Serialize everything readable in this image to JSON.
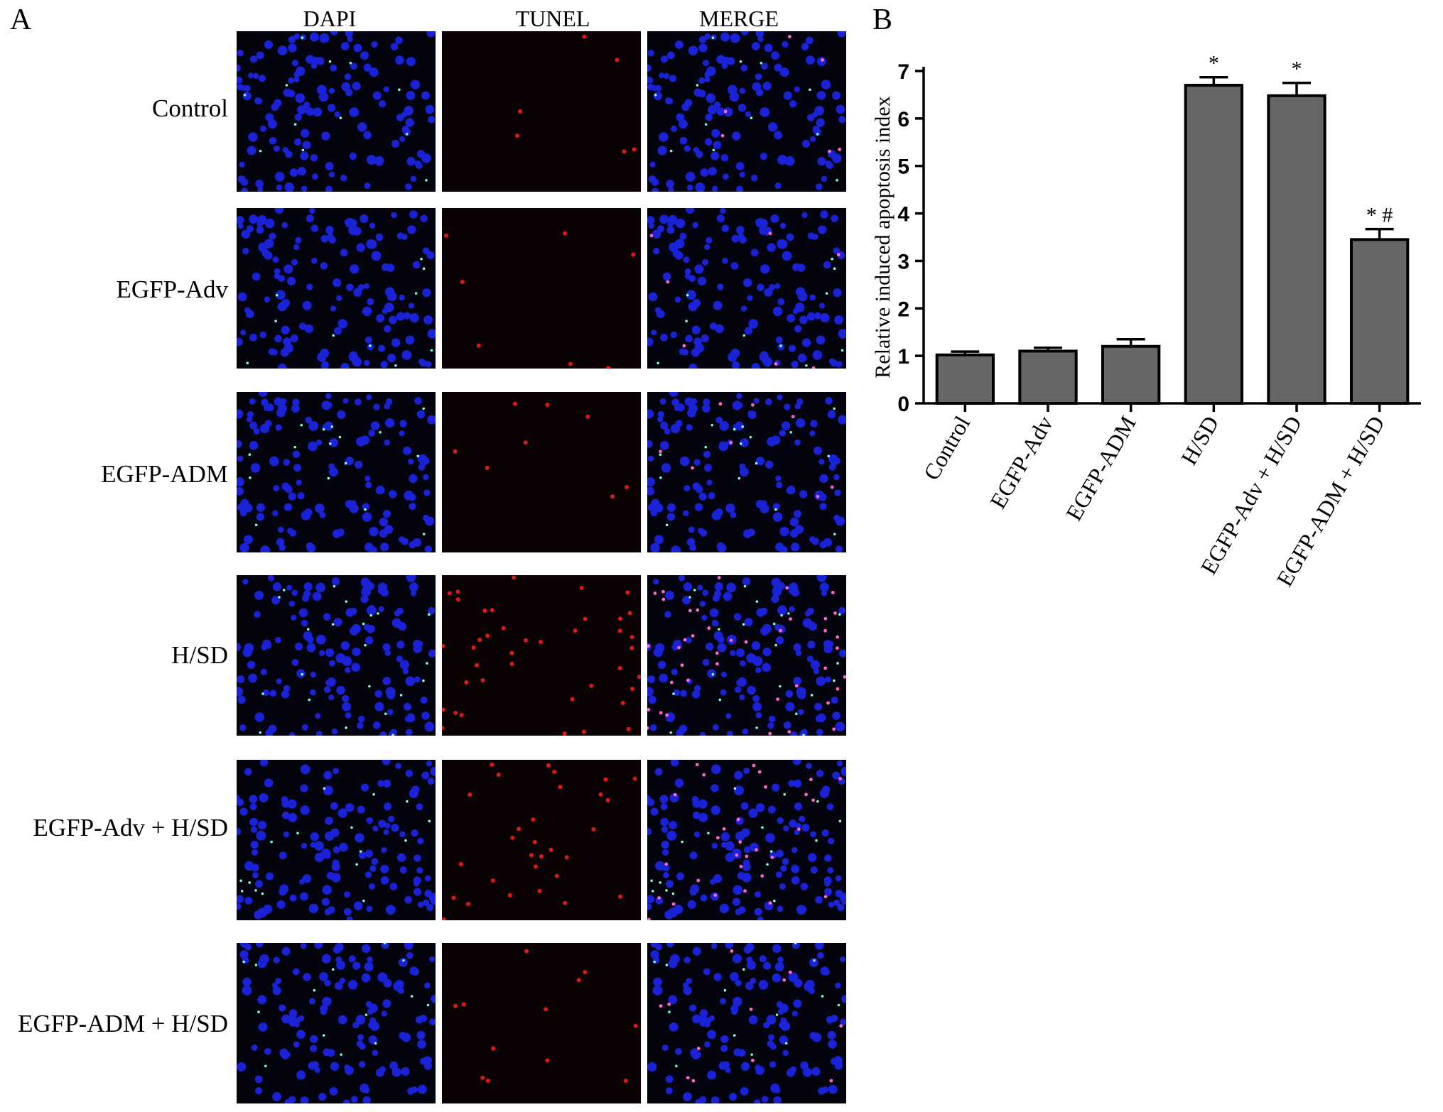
{
  "panel_a": {
    "letter": "A",
    "columns": [
      "DAPI",
      "TUNEL",
      "MERGE"
    ],
    "rows": [
      "Control",
      "EGFP-Adv",
      "EGFP-ADM",
      "H/SD",
      "EGFP-Adv + H/SD",
      "EGFP-ADM + H/SD"
    ],
    "colors": {
      "background": "#04040e",
      "dapi": "#1a22d8",
      "tunel": "#e01818",
      "merge_overlay": "#ff66cc",
      "egfp": "#7fffd0"
    }
  },
  "panel_b": {
    "letter": "B"
  },
  "chart_data": {
    "type": "bar",
    "categories": [
      "Control",
      "EGFP-Adv",
      "EGFP-ADM",
      "H/SD",
      "EGFP-Adv + H/SD",
      "EGFP-ADM + H/SD"
    ],
    "values": [
      1.02,
      1.1,
      1.2,
      6.7,
      6.48,
      3.45
    ],
    "errors": [
      0.07,
      0.07,
      0.15,
      0.17,
      0.27,
      0.22
    ],
    "annotations": [
      "",
      "",
      "",
      "*",
      "*",
      "* #"
    ],
    "ylabel": "Relative induced apoptosis index",
    "xlabel": "",
    "ylim": [
      0,
      7
    ],
    "yticks": [
      "0",
      "1",
      "2",
      "3",
      "4",
      "5",
      "6",
      "7"
    ],
    "grid": false,
    "bar_color": "#666666"
  }
}
